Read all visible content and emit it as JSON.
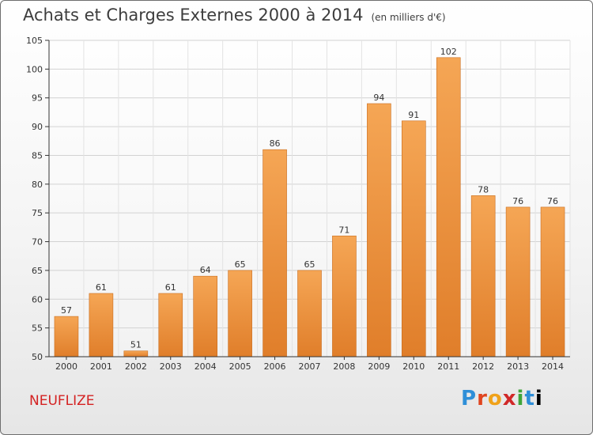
{
  "header": {
    "title": "Achats et Charges Externes 2000 à 2014",
    "unit": "(en milliers d'€)"
  },
  "footer": {
    "commune": "NEUFLIZE",
    "logo_letters": [
      "P",
      "r",
      "o",
      "x",
      "i",
      "t",
      "i"
    ]
  },
  "colors": {
    "bar_light": "#f5a655",
    "bar_dark": "#e07e2a",
    "commune": "#d42222"
  },
  "chart_data": {
    "type": "bar",
    "title": "Achats et Charges Externes 2000 à 2014",
    "subtitle": "(en milliers d'€)",
    "categories": [
      "2000",
      "2001",
      "2002",
      "2003",
      "2004",
      "2005",
      "2006",
      "2007",
      "2008",
      "2009",
      "2010",
      "2011",
      "2012",
      "2013",
      "2014"
    ],
    "values": [
      57,
      61,
      51,
      61,
      64,
      65,
      86,
      65,
      71,
      94,
      91,
      102,
      78,
      76,
      76
    ],
    "ylim": [
      50,
      105
    ],
    "yticks": [
      50,
      55,
      60,
      65,
      70,
      75,
      80,
      85,
      90,
      95,
      100,
      105
    ],
    "grid": true,
    "xlabel": "",
    "ylabel": ""
  }
}
